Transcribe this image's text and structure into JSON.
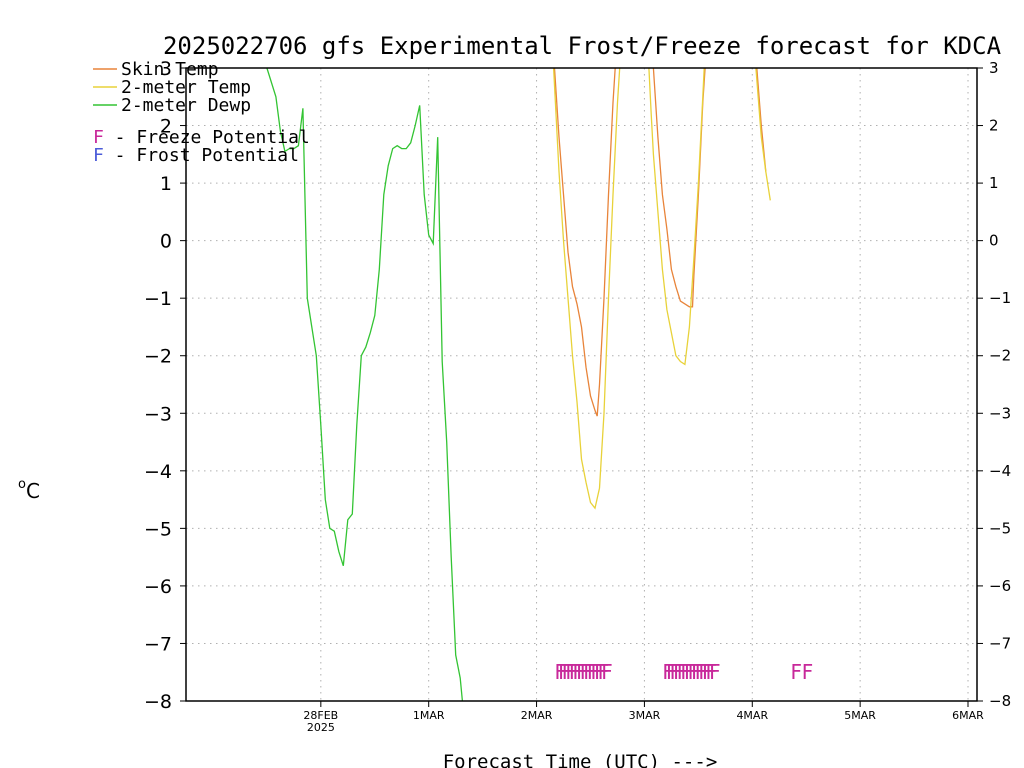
{
  "chart_data": {
    "type": "line",
    "title": "2025022706 gfs Experimental Frost/Freeze forecast for KDCA",
    "xlabel": "Forecast Time (UTC) --->",
    "ylabel_unit": "C",
    "ylabel_degree": "o",
    "ylim": [
      -8,
      3
    ],
    "xlim_hours": [
      -12,
      164
    ],
    "grid": true,
    "yticks": [
      3,
      2,
      1,
      0,
      -1,
      -2,
      -3,
      -4,
      -5,
      -6,
      -7,
      -8
    ],
    "xticks": [
      {
        "label": "28FEB",
        "sub": "2025",
        "hour": 18
      },
      {
        "label": "1MAR",
        "sub": "",
        "hour": 42
      },
      {
        "label": "2MAR",
        "sub": "",
        "hour": 66
      },
      {
        "label": "3MAR",
        "sub": "",
        "hour": 90
      },
      {
        "label": "4MAR",
        "sub": "",
        "hour": 114
      },
      {
        "label": "5MAR",
        "sub": "",
        "hour": 138
      },
      {
        "label": "6MAR",
        "sub": "",
        "hour": 162
      }
    ],
    "series": [
      {
        "name": "Skin Temp",
        "color": "#e8843a",
        "points": [
          [
            70,
            3
          ],
          [
            71,
            1.8
          ],
          [
            72,
            0.8
          ],
          [
            73,
            -0.2
          ],
          [
            74,
            -0.8
          ],
          [
            75,
            -1.1
          ],
          [
            76,
            -1.5
          ],
          [
            77,
            -2.2
          ],
          [
            78,
            -2.7
          ],
          [
            79,
            -2.95
          ],
          [
            79.5,
            -3.05
          ],
          [
            80,
            -2.5
          ],
          [
            81,
            -1
          ],
          [
            82,
            0.8
          ],
          [
            83,
            2.4
          ],
          [
            83.5,
            3
          ],
          [
            92,
            3
          ],
          [
            93,
            1.8
          ],
          [
            94,
            0.8
          ],
          [
            95,
            0.2
          ],
          [
            96,
            -0.5
          ],
          [
            97,
            -0.8
          ],
          [
            98,
            -1.05
          ],
          [
            99,
            -1.1
          ],
          [
            100,
            -1.15
          ],
          [
            100.7,
            -1.15
          ],
          [
            101,
            -0.6
          ],
          [
            102,
            0.8
          ],
          [
            103,
            2.4
          ],
          [
            103.5,
            3
          ],
          [
            115,
            3
          ],
          [
            116,
            2
          ],
          [
            117,
            1.2
          ]
        ]
      },
      {
        "name": "2-meter Temp",
        "color": "#e8d23a",
        "points": [
          [
            69.8,
            3
          ],
          [
            71,
            1.2
          ],
          [
            72,
            0
          ],
          [
            73,
            -1
          ],
          [
            74,
            -2
          ],
          [
            75,
            -2.8
          ],
          [
            76,
            -3.8
          ],
          [
            77,
            -4.2
          ],
          [
            78,
            -4.55
          ],
          [
            79,
            -4.65
          ],
          [
            80,
            -4.3
          ],
          [
            81,
            -3
          ],
          [
            82,
            -1
          ],
          [
            83,
            0.8
          ],
          [
            84,
            2.4
          ],
          [
            84.5,
            3
          ],
          [
            91,
            3
          ],
          [
            91.5,
            2.2
          ],
          [
            92,
            1.5
          ],
          [
            93,
            0.5
          ],
          [
            94,
            -0.5
          ],
          [
            95,
            -1.2
          ],
          [
            96,
            -1.6
          ],
          [
            97,
            -2
          ],
          [
            98,
            -2.1
          ],
          [
            99,
            -2.15
          ],
          [
            100,
            -1.5
          ],
          [
            101,
            -0.3
          ],
          [
            102,
            1
          ],
          [
            103,
            2.5
          ],
          [
            103.3,
            3
          ],
          [
            114.8,
            3
          ],
          [
            116,
            1.8
          ],
          [
            117,
            1.2
          ],
          [
            118,
            0.7
          ]
        ]
      },
      {
        "name": "2-meter Dewp",
        "color": "#33c433",
        "points": [
          [
            6,
            3
          ],
          [
            8,
            2.5
          ],
          [
            9,
            1.9
          ],
          [
            10,
            1.55
          ],
          [
            11,
            1.6
          ],
          [
            12,
            1.6
          ],
          [
            13,
            1.65
          ],
          [
            14,
            2.3
          ],
          [
            15,
            -1
          ],
          [
            16,
            -1.5
          ],
          [
            17,
            -2
          ],
          [
            18,
            -3.2
          ],
          [
            19,
            -4.5
          ],
          [
            20,
            -5
          ],
          [
            21,
            -5.05
          ],
          [
            22,
            -5.4
          ],
          [
            23,
            -5.65
          ],
          [
            24,
            -4.85
          ],
          [
            25,
            -4.75
          ],
          [
            26,
            -3.2
          ],
          [
            27,
            -2
          ],
          [
            28,
            -1.85
          ],
          [
            29,
            -1.6
          ],
          [
            30,
            -1.3
          ],
          [
            31,
            -0.5
          ],
          [
            32,
            0.8
          ],
          [
            33,
            1.3
          ],
          [
            34,
            1.6
          ],
          [
            35,
            1.65
          ],
          [
            36,
            1.6
          ],
          [
            37,
            1.6
          ],
          [
            38,
            1.7
          ],
          [
            39,
            2
          ],
          [
            40,
            2.35
          ],
          [
            41,
            0.8
          ],
          [
            42,
            0.1
          ],
          [
            43,
            -0.05
          ],
          [
            44,
            1.8
          ],
          [
            45,
            -2.1
          ],
          [
            46,
            -3.5
          ],
          [
            47,
            -5.5
          ],
          [
            48,
            -7.2
          ],
          [
            49,
            -7.6
          ],
          [
            49.5,
            -8
          ]
        ]
      }
    ],
    "legend": {
      "entries": [
        "Skin Temp",
        "2-meter Temp",
        "2-meter Dewp"
      ],
      "notes": [
        {
          "letter": "F",
          "text": " - Freeze Potential",
          "color": "#c8289a"
        },
        {
          "letter": "F",
          "text": " - Frost Potential",
          "color": "#4b5bd8"
        }
      ]
    },
    "freeze_flags": {
      "letter": "F",
      "color": "#c8289a",
      "y": -7.5,
      "hours": [
        70,
        70.8,
        71.6,
        72.4,
        73.2,
        74,
        74.8,
        75.6,
        76.4,
        77.2,
        78,
        78.8,
        79.6,
        80.4,
        94,
        94.8,
        95.6,
        96.4,
        97.2,
        98,
        98.8,
        99.6,
        100.4,
        101.2,
        102,
        102.8,
        103.6,
        104.4,
        122.5,
        125
      ]
    }
  }
}
